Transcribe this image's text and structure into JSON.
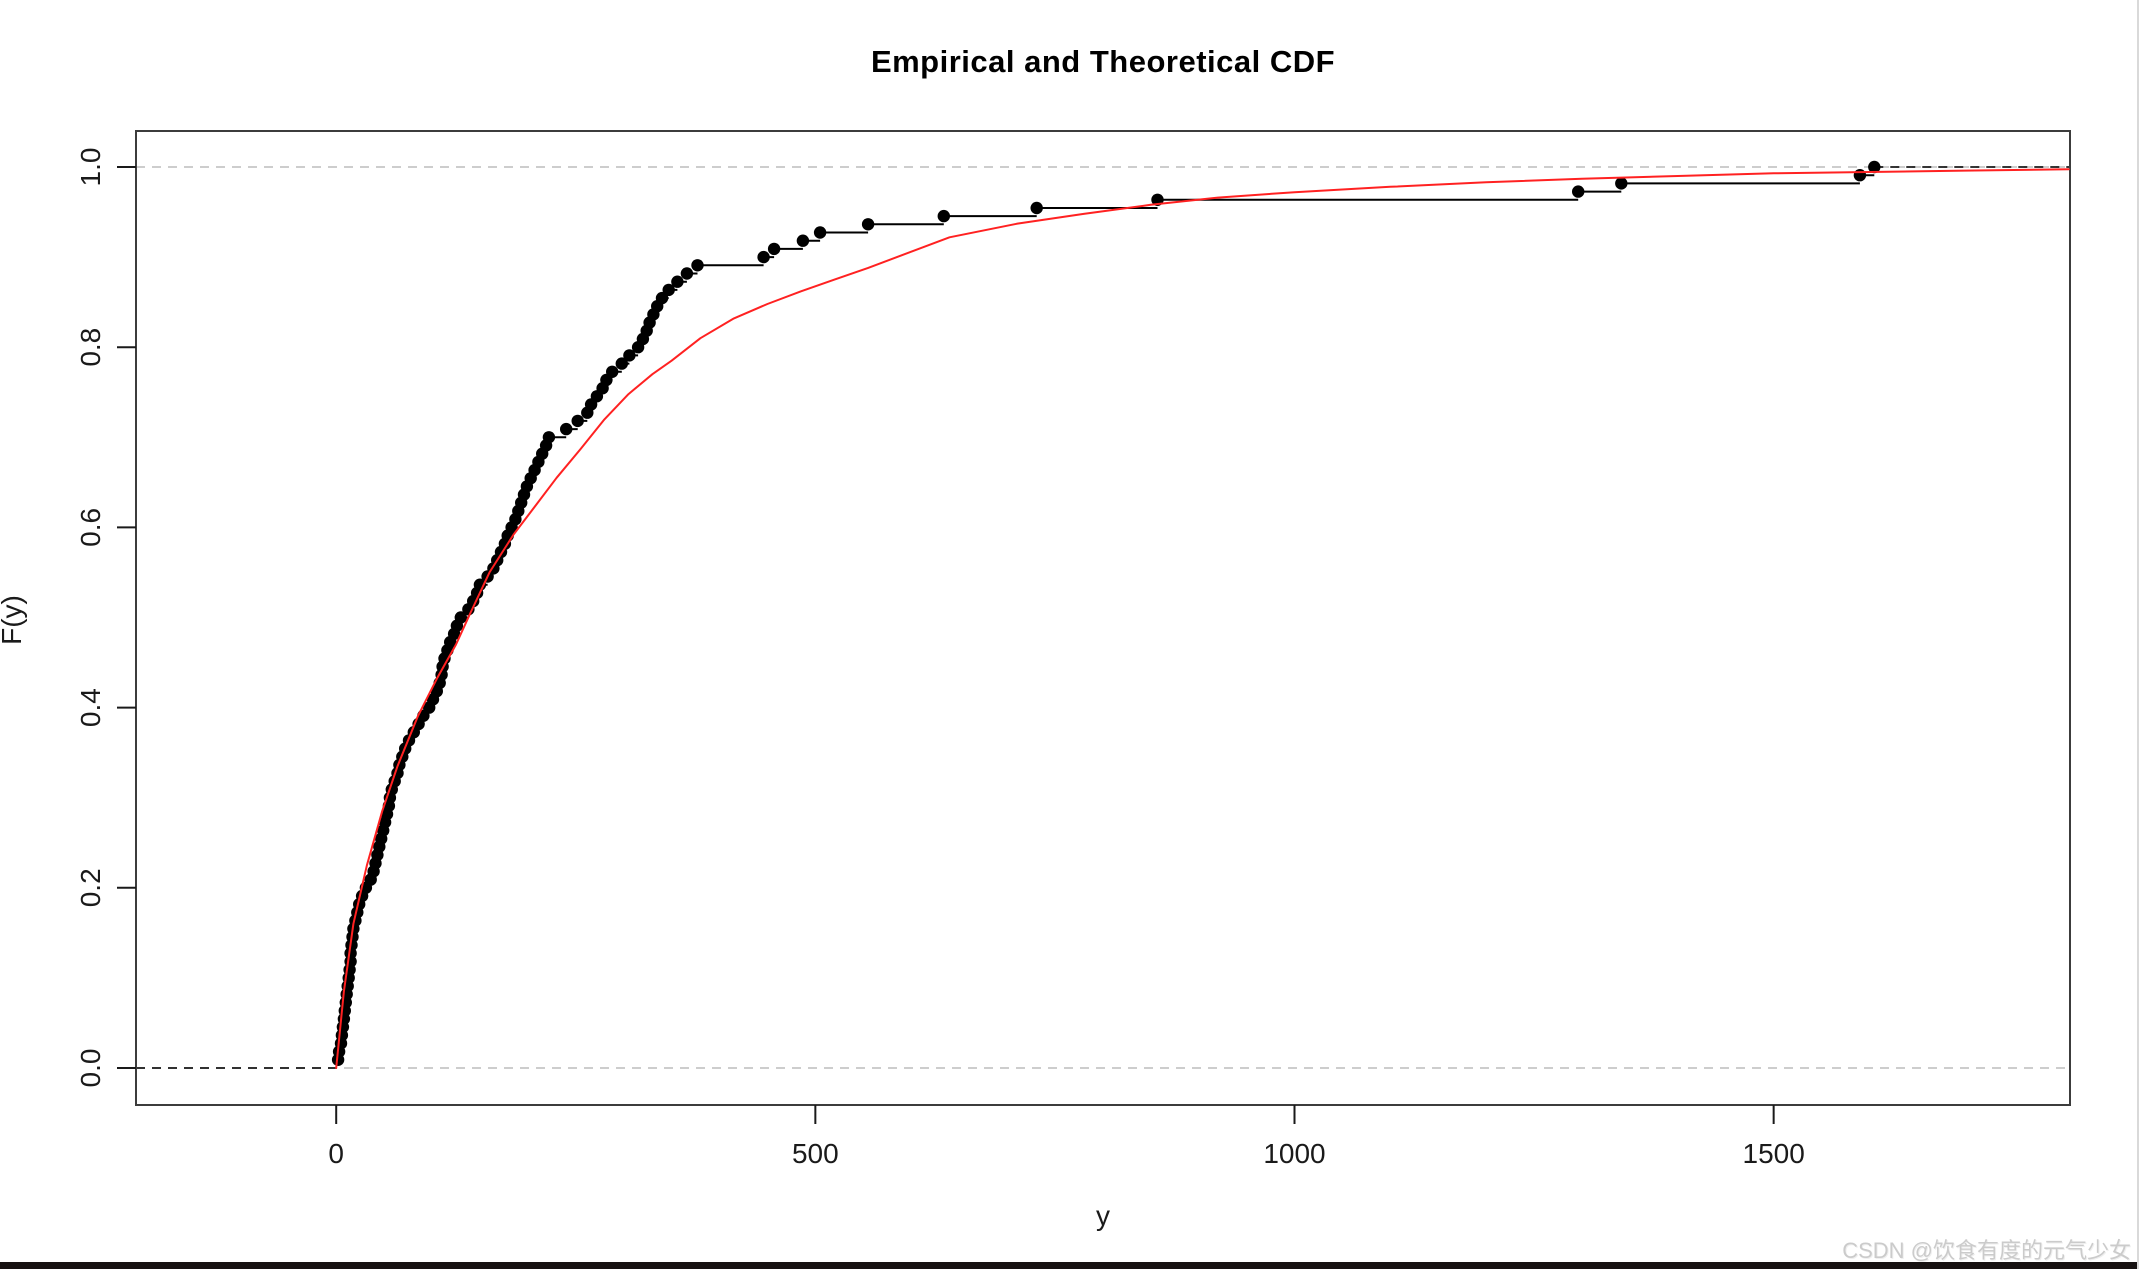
{
  "page": {
    "background": "#ffffff"
  },
  "watermark": {
    "text": "CSDN @饮食有度的元气少女",
    "color": "#cbcbcb"
  },
  "bottom_bar": {
    "color": "#161111"
  },
  "chart_data": {
    "type": "line",
    "subtype": "empirical-step-cdf-with-theoretical-curve",
    "title": "Empirical and Theoretical CDF",
    "xlabel": "y",
    "ylabel": "F(y)",
    "xlim": [
      -209,
      1808
    ],
    "ylim": [
      -0.04,
      1.04
    ],
    "grid": "dashed horizontal reference lines at F=0 and F=1",
    "legend_position": "none",
    "x_ticks": [
      {
        "value": 0,
        "label": "0"
      },
      {
        "value": 500,
        "label": "500"
      },
      {
        "value": 1000,
        "label": "1000"
      },
      {
        "value": 1500,
        "label": "1500"
      }
    ],
    "y_ticks": [
      {
        "value": 0.0,
        "label": "0.0"
      },
      {
        "value": 0.2,
        "label": "0.2"
      },
      {
        "value": 0.4,
        "label": "0.4"
      },
      {
        "value": 0.6,
        "label": "0.6"
      },
      {
        "value": 0.8,
        "label": "0.8"
      },
      {
        "value": 1.0,
        "label": "1.0"
      }
    ],
    "series": [
      {
        "name": "empirical-ecdf",
        "style": "step-function-with-points",
        "color": "#000000",
        "n": 110,
        "ecdf_note": "F(i) = i/110 for i-th sorted value",
        "sorted_values": [
          2,
          3,
          5,
          6,
          7,
          8,
          9,
          10,
          11,
          12,
          13,
          14,
          15,
          15,
          16,
          17,
          18,
          20,
          22,
          24,
          27,
          31,
          36,
          39,
          41,
          43,
          45,
          47,
          49,
          51,
          53,
          55,
          56,
          58,
          61,
          64,
          66,
          69,
          72,
          76,
          81,
          86,
          91,
          97,
          101,
          105,
          108,
          110,
          111,
          113,
          116,
          119,
          123,
          126,
          130,
          138,
          143,
          147,
          150,
          158,
          164,
          168,
          172,
          176,
          179,
          183,
          187,
          190,
          193,
          196,
          199,
          203,
          207,
          211,
          215,
          219,
          222,
          240,
          252,
          262,
          266,
          272,
          278,
          282,
          288,
          298,
          306,
          315,
          320,
          324,
          327,
          331,
          335,
          340,
          347,
          356,
          366,
          377,
          446,
          457,
          487,
          505,
          555,
          634,
          731,
          857,
          1296,
          1341,
          1590,
          1605
        ]
      },
      {
        "name": "theoretical-cdf",
        "style": "smooth-line",
        "color": "#ff2121",
        "points": [
          [
            0,
            0
          ],
          [
            8,
            0.085
          ],
          [
            18,
            0.16
          ],
          [
            32,
            0.225
          ],
          [
            48,
            0.285
          ],
          [
            64,
            0.335
          ],
          [
            85,
            0.39
          ],
          [
            105,
            0.432
          ],
          [
            125,
            0.47
          ],
          [
            140,
            0.505
          ],
          [
            160,
            0.55
          ],
          [
            185,
            0.592
          ],
          [
            205,
            0.62
          ],
          [
            230,
            0.655
          ],
          [
            255,
            0.687
          ],
          [
            280,
            0.72
          ],
          [
            305,
            0.748
          ],
          [
            330,
            0.77
          ],
          [
            350,
            0.785
          ],
          [
            380,
            0.81
          ],
          [
            415,
            0.832
          ],
          [
            450,
            0.848
          ],
          [
            485,
            0.862
          ],
          [
            520,
            0.875
          ],
          [
            555,
            0.888
          ],
          [
            590,
            0.902
          ],
          [
            640,
            0.922
          ],
          [
            710,
            0.937
          ],
          [
            780,
            0.948
          ],
          [
            850,
            0.958
          ],
          [
            920,
            0.966
          ],
          [
            1000,
            0.972
          ],
          [
            1100,
            0.978
          ],
          [
            1200,
            0.983
          ],
          [
            1300,
            0.987
          ],
          [
            1400,
            0.99
          ],
          [
            1500,
            0.993
          ],
          [
            1600,
            0.9945
          ],
          [
            1700,
            0.996
          ],
          [
            1808,
            0.9975
          ]
        ]
      }
    ],
    "reference_lines": [
      {
        "at": 0.0,
        "style": "dashed",
        "color": "#c6c6c6"
      },
      {
        "at": 1.0,
        "style": "dashed",
        "color": "#c6c6c6"
      }
    ]
  }
}
